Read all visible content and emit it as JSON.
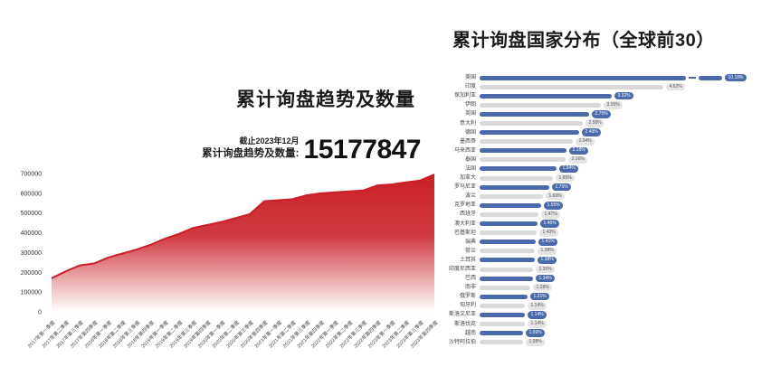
{
  "left_chart": {
    "title": "累计询盘趋势及数量",
    "as_of": "截止2023年12月",
    "total_label": "累计询盘趋势及数量:",
    "total_value": "15177847"
  },
  "right_chart": {
    "title": "累计询盘国家分布（全球前30）"
  },
  "colors": {
    "area_red": "#cb1f27",
    "bar_blue": "#4a6aac",
    "bar_gray": "#d9d9d9",
    "pill_gray_bg": "#e4e4e4"
  },
  "chart_data": [
    {
      "type": "area",
      "title": "累计询盘趋势及数量",
      "annotation": "截止2023年12月 累计询盘趋势及数量: 15177847",
      "x": [
        "2017年第一季度",
        "2017年第二季度",
        "2017年第三季度",
        "2017年第四季度",
        "2018年第一季度",
        "2018年第二季度",
        "2018年第三季度",
        "2018年第四季度",
        "2019年第一季度",
        "2019年第二季度",
        "2019年第三季度",
        "2019年第四季度",
        "2020年第一季度",
        "2020年第二季度",
        "2020年第三季度",
        "2020年第四季度",
        "2021年第一季度",
        "2021年第二季度",
        "2021年第三季度",
        "2021年第四季度",
        "2022年第一季度",
        "2022年第二季度",
        "2022年第三季度",
        "2022年第四季度",
        "2023年第一季度",
        "2023年第二季度",
        "2023年第三季度",
        "2023年第四季度"
      ],
      "values": [
        170000,
        205000,
        235000,
        245000,
        275000,
        295000,
        315000,
        340000,
        370000,
        395000,
        425000,
        440000,
        455000,
        475000,
        495000,
        560000,
        565000,
        570000,
        590000,
        600000,
        605000,
        610000,
        615000,
        640000,
        645000,
        655000,
        665000,
        695000
      ],
      "ylim": [
        0,
        700000
      ],
      "yticks": [
        0,
        100000,
        200000,
        300000,
        400000,
        500000,
        600000,
        700000
      ],
      "grid": false,
      "legend": "none"
    },
    {
      "type": "bar",
      "orientation": "horizontal",
      "title": "累计询盘国家分布（全球前30）",
      "unit": "%",
      "axis_break_on_first_bar": true,
      "categories": [
        "美国",
        "印度",
        "保加利亚",
        "伊朗",
        "英国",
        "意大利",
        "德国",
        "墨西哥",
        "马来西亚",
        "泰国",
        "法国",
        "加拿大",
        "罗马尼亚",
        "波兰",
        "克罗地亚",
        "西班牙",
        "澳大利亚",
        "巴基斯坦",
        "瑞典",
        "荷兰",
        "土耳其",
        "印度尼西亚",
        "巴西",
        "南非",
        "俄罗斯",
        "匈牙利",
        "斯洛文尼亚",
        "斯洛伐克",
        "越南",
        "沙特阿拉伯"
      ],
      "values": [
        10.18,
        4.62,
        3.32,
        3.05,
        2.75,
        2.58,
        2.49,
        2.34,
        2.18,
        2.16,
        1.94,
        1.85,
        1.75,
        1.6,
        1.55,
        1.47,
        1.46,
        1.43,
        1.41,
        1.38,
        1.38,
        1.35,
        1.34,
        1.28,
        1.21,
        1.14,
        1.14,
        1.14,
        1.09,
        1.08
      ]
    }
  ]
}
